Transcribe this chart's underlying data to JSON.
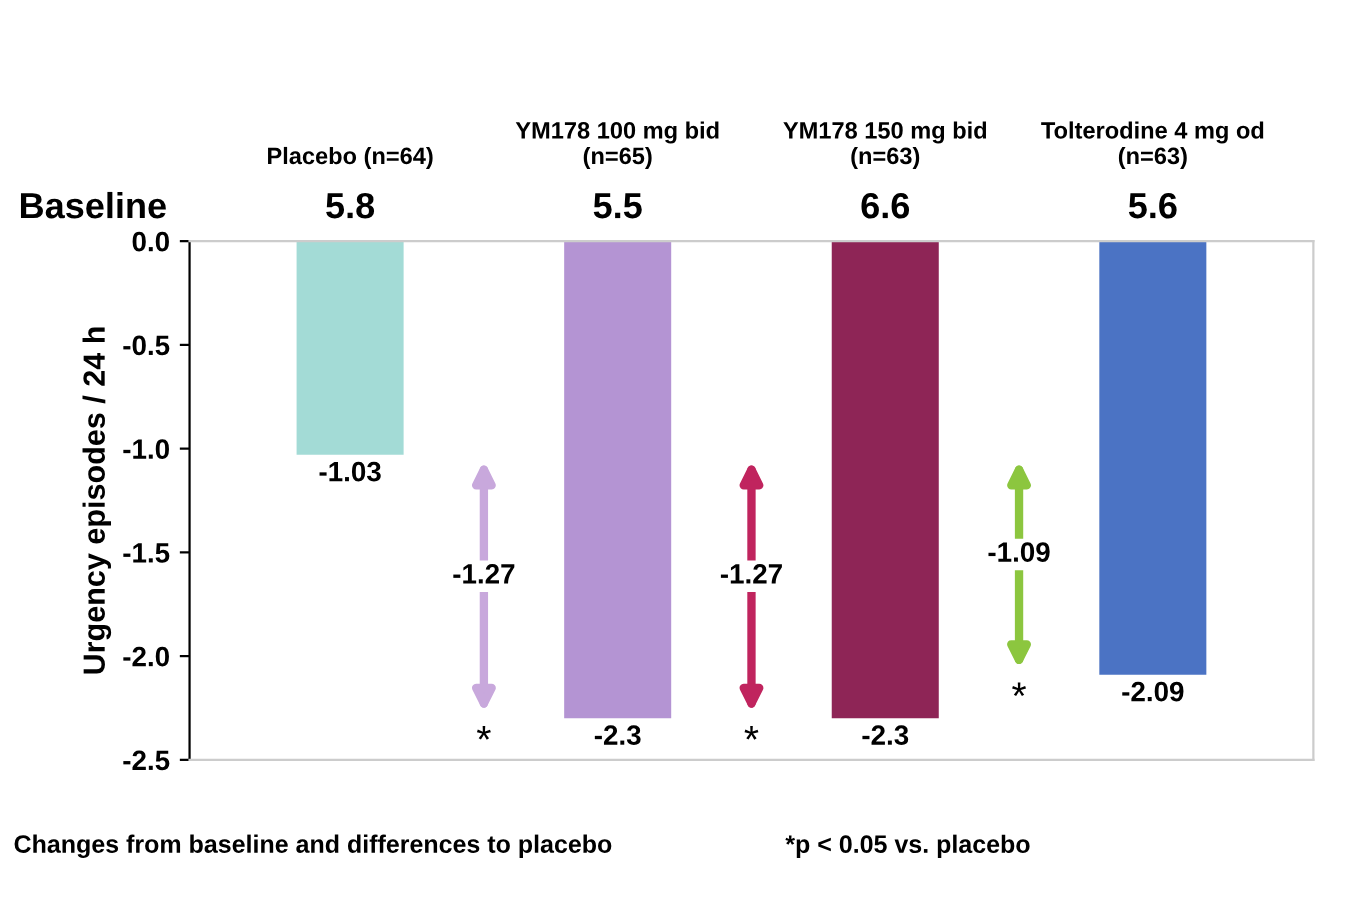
{
  "chart_data": {
    "type": "bar",
    "categories": [
      "Placebo (n=64)",
      "YM178 100 mg bid\n(n=65)",
      "YM178 150 mg bid\n(n=63)",
      "Tolterodine 4 mg od\n(n=63)"
    ],
    "values": [
      -1.03,
      -2.3,
      -2.3,
      -2.09
    ],
    "colors": [
      "#a3dbd6",
      "#b494d3",
      "#8e2556",
      "#4b73c4"
    ],
    "data_labels": true,
    "ylabel": "Urgency episodes / 24 h",
    "ylim": [
      -2.5,
      0
    ],
    "yticks": [
      {
        "value": 0,
        "label": "0.0"
      },
      {
        "value": -0.5,
        "label": "-0.5"
      },
      {
        "value": -1,
        "label": "-1.0"
      },
      {
        "value": -1.5,
        "label": "-1.5"
      },
      {
        "value": -2,
        "label": "-2.0"
      },
      {
        "value": -2.5,
        "label": "-2.5"
      }
    ],
    "annotations": [
      "Baseline",
      "5.8",
      "5.5",
      "6.6",
      "5.6",
      "-1.27",
      "-1.27",
      "-1.09",
      "*",
      "*",
      "*",
      "Changes from baseline and differences to placebo",
      "*p < 0.05 vs. placebo"
    ]
  }
}
